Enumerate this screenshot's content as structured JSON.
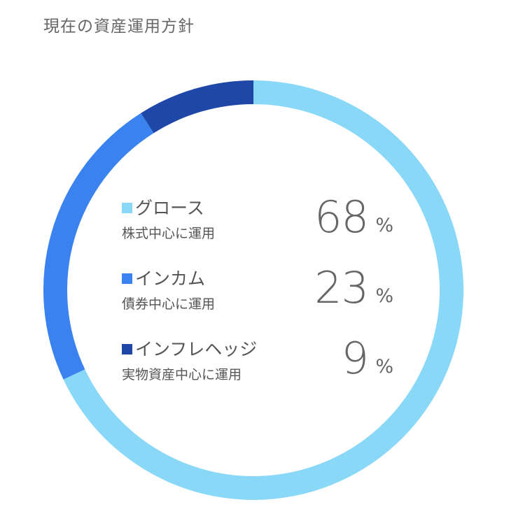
{
  "title": "現在の資産運用方針",
  "chart_data": {
    "type": "pie",
    "style": "donut",
    "categories": [
      "グロース",
      "インカム",
      "インフレヘッジ"
    ],
    "descriptions": [
      "株式中心に運用",
      "債券中心に運用",
      "実物資産中心に運用"
    ],
    "values": [
      68,
      23,
      9
    ],
    "unit": "%",
    "colors": [
      "#8ad8f8",
      "#3a82f0",
      "#1f47a8"
    ],
    "start": "top",
    "direction": "clockwise"
  }
}
